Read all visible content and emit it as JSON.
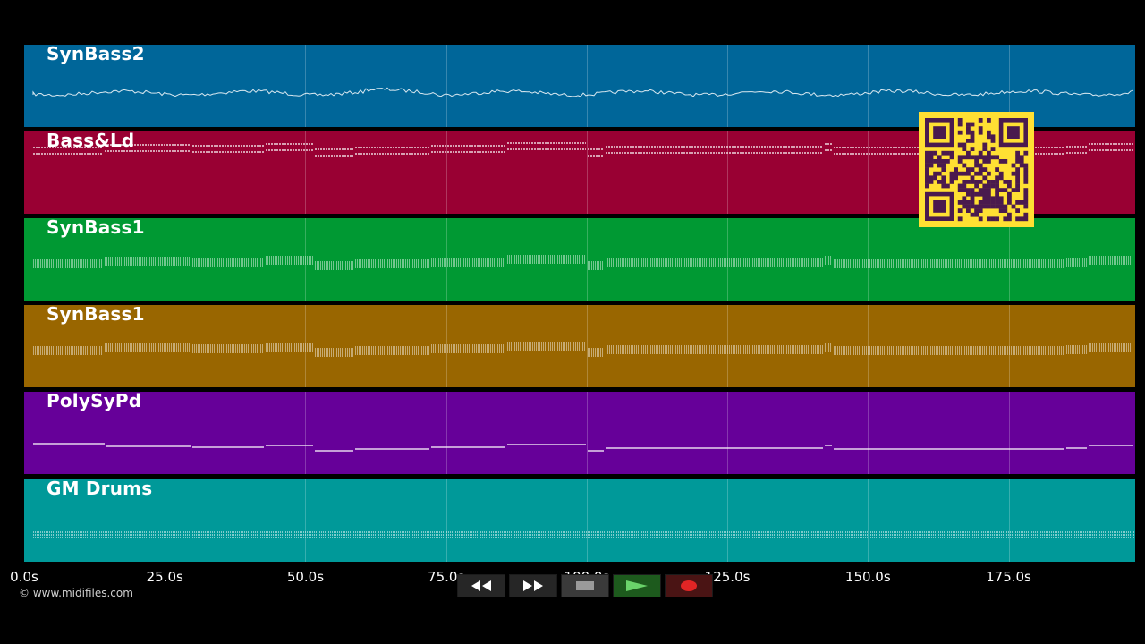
{
  "tracks": [
    {
      "name": "SynBass2",
      "color": "#006699",
      "pattern": "wave"
    },
    {
      "name": "Bass&Ld",
      "color": "#990033",
      "pattern": "double"
    },
    {
      "name": "SynBass1",
      "color": "#009933",
      "pattern": "band"
    },
    {
      "name": "SynBass1",
      "color": "#996600",
      "pattern": "band"
    },
    {
      "name": "PolySyPd",
      "color": "#660099",
      "pattern": "single"
    },
    {
      "name": "GM Drums",
      "color": "#009999",
      "pattern": "drums"
    }
  ],
  "timeline": {
    "ticks": [
      "0.0s",
      "25.0s",
      "50.0s",
      "75.0s",
      "100.0s",
      "125.0s",
      "150.0s",
      "175.0s"
    ],
    "tick_seconds": [
      0,
      25,
      50,
      75,
      100,
      125,
      150,
      175
    ],
    "max_seconds": 197.5
  },
  "copyright": "© www.midifiles.com",
  "transport": {
    "rewind": "rewind-icon",
    "fast_forward": "fast-forward-icon",
    "stop": "stop-icon",
    "play": "play-icon",
    "record": "record-icon"
  },
  "qr": {
    "fg": "#4a1a4e",
    "bg": "#ffe033"
  }
}
